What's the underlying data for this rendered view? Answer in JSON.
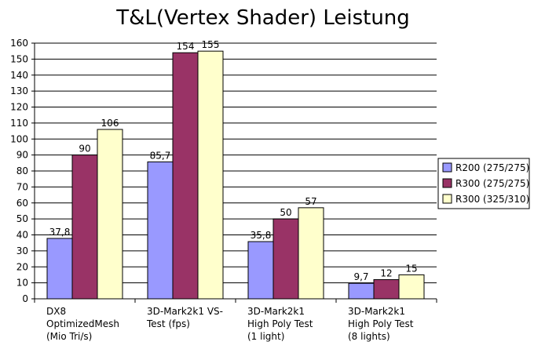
{
  "chart_data": {
    "type": "bar",
    "title": "T&L(Vertex Shader) Leistung",
    "xlabel": "",
    "ylabel": "",
    "ylim": [
      0,
      160
    ],
    "yticks": [
      "0",
      "10",
      "20",
      "30",
      "40",
      "50",
      "60",
      "70",
      "80",
      "90",
      "100",
      "110",
      "120",
      "130",
      "140",
      "150",
      "160"
    ],
    "grid": true,
    "legend_position": "right",
    "categories": [
      [
        "DX8",
        "OptimizedMesh",
        "(Mio Tri/s)"
      ],
      [
        "3D-Mark2k1 VS-",
        "Test (fps)"
      ],
      [
        "3D-Mark2k1",
        "High Poly Test",
        "(1 light)"
      ],
      [
        "3D-Mark2k1",
        "High Poly Test",
        "(8 lights)"
      ]
    ],
    "series": [
      {
        "name": "R200 (275/275)",
        "color": "#9999ff",
        "values": [
          37.8,
          85.7,
          35.8,
          9.7
        ],
        "labels": [
          "37,8",
          "85,7",
          "35,8",
          "9,7"
        ]
      },
      {
        "name": "R300 (275/275)",
        "color": "#993366",
        "values": [
          90,
          154,
          50,
          12
        ],
        "labels": [
          "90",
          "154",
          "50",
          "12"
        ]
      },
      {
        "name": "R300 (325/310)",
        "color": "#ffffcc",
        "values": [
          106,
          155,
          57,
          15
        ],
        "labels": [
          "106",
          "155",
          "57",
          "15"
        ]
      }
    ]
  }
}
